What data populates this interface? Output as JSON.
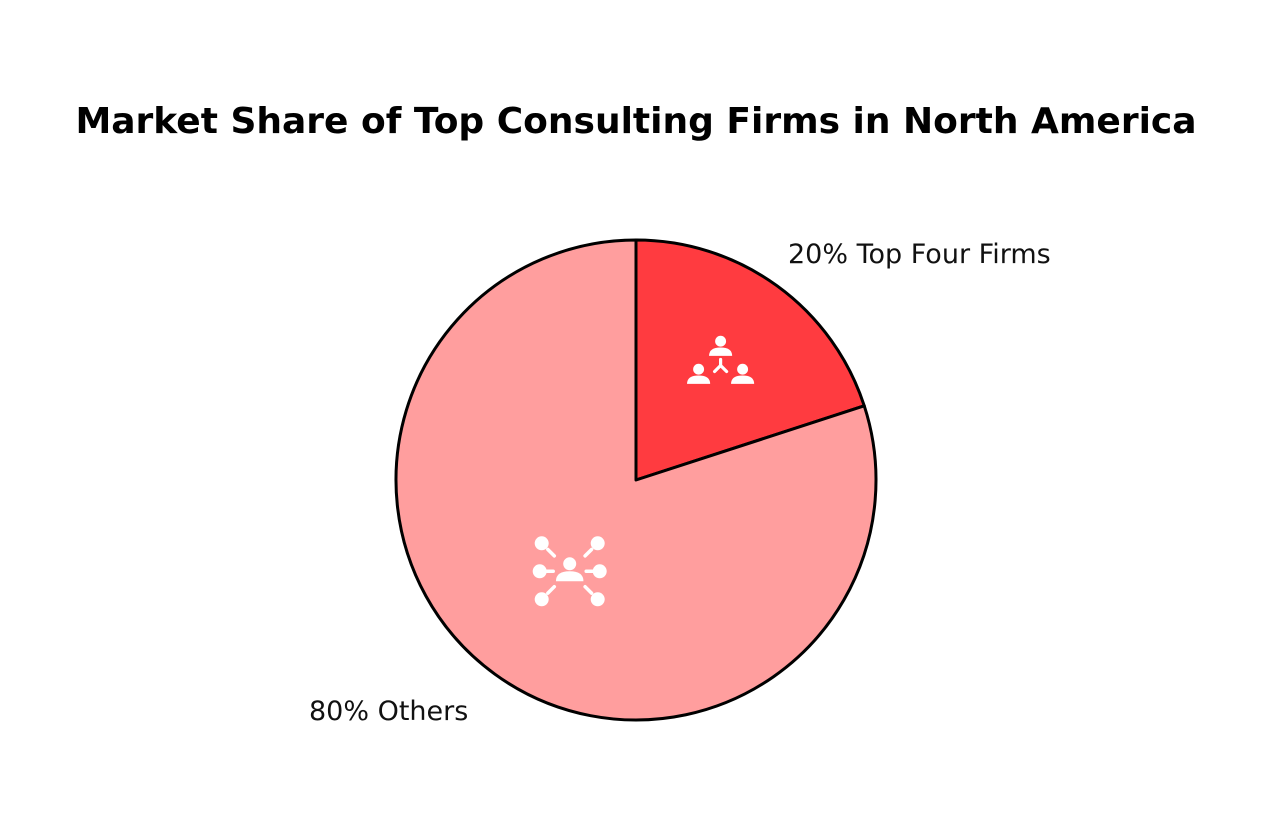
{
  "chart_data": {
    "type": "pie",
    "title": "Market Share of Top Consulting Firms in North America",
    "slices": [
      {
        "label": "20% Top Four Firms",
        "value": 20,
        "color": "#ff3b40",
        "icon": "network-people-icon"
      },
      {
        "label": "80% Others",
        "value": 80,
        "color": "#ff9e9e",
        "icon": "connected-people-icon"
      }
    ]
  }
}
